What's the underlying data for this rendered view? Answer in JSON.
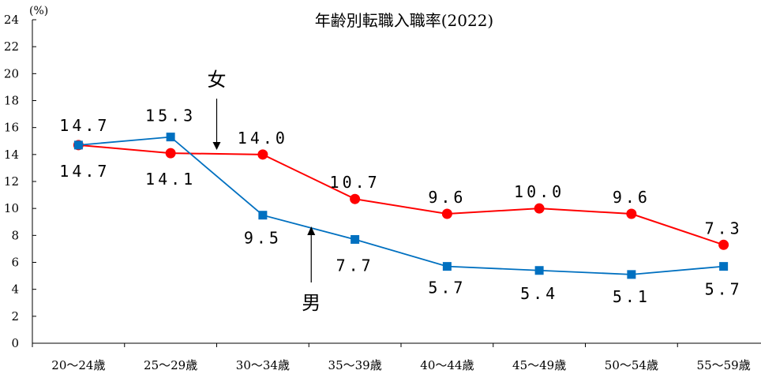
{
  "chart_data": {
    "type": "line",
    "title": "年齢別転職入職率(2022)",
    "unit": "(%)",
    "categories": [
      "20～24歳",
      "25～29歳",
      "30～34歳",
      "35～39歳",
      "40～44歳",
      "45～49歳",
      "50～54歳",
      "55～59歳"
    ],
    "ylim": [
      0,
      24
    ],
    "yticks": [
      "0",
      "2",
      "4",
      "6",
      "8",
      "10",
      "12",
      "14",
      "16",
      "18",
      "20",
      "22",
      "24"
    ],
    "grid": false,
    "series": [
      {
        "name": "女",
        "color": "#ff0000",
        "marker": "circle",
        "values": [
          14.7,
          14.1,
          14.0,
          10.7,
          9.6,
          10.0,
          9.6,
          7.3
        ],
        "labels": [
          "14.7",
          "14.1",
          "14.0",
          "10.7",
          "9.6",
          "10.0",
          "9.6",
          "7.3"
        ]
      },
      {
        "name": "男",
        "color": "#0070c0",
        "marker": "square",
        "values": [
          14.7,
          15.3,
          9.5,
          7.7,
          5.7,
          5.4,
          5.1,
          5.7
        ],
        "labels": [
          "14.7",
          "15.3",
          "9.5",
          "7.7",
          "5.7",
          "5.4",
          "5.1",
          "5.7"
        ]
      }
    ],
    "annotations": [
      {
        "text": "女",
        "series": "女"
      },
      {
        "text": "男",
        "series": "男"
      }
    ]
  }
}
